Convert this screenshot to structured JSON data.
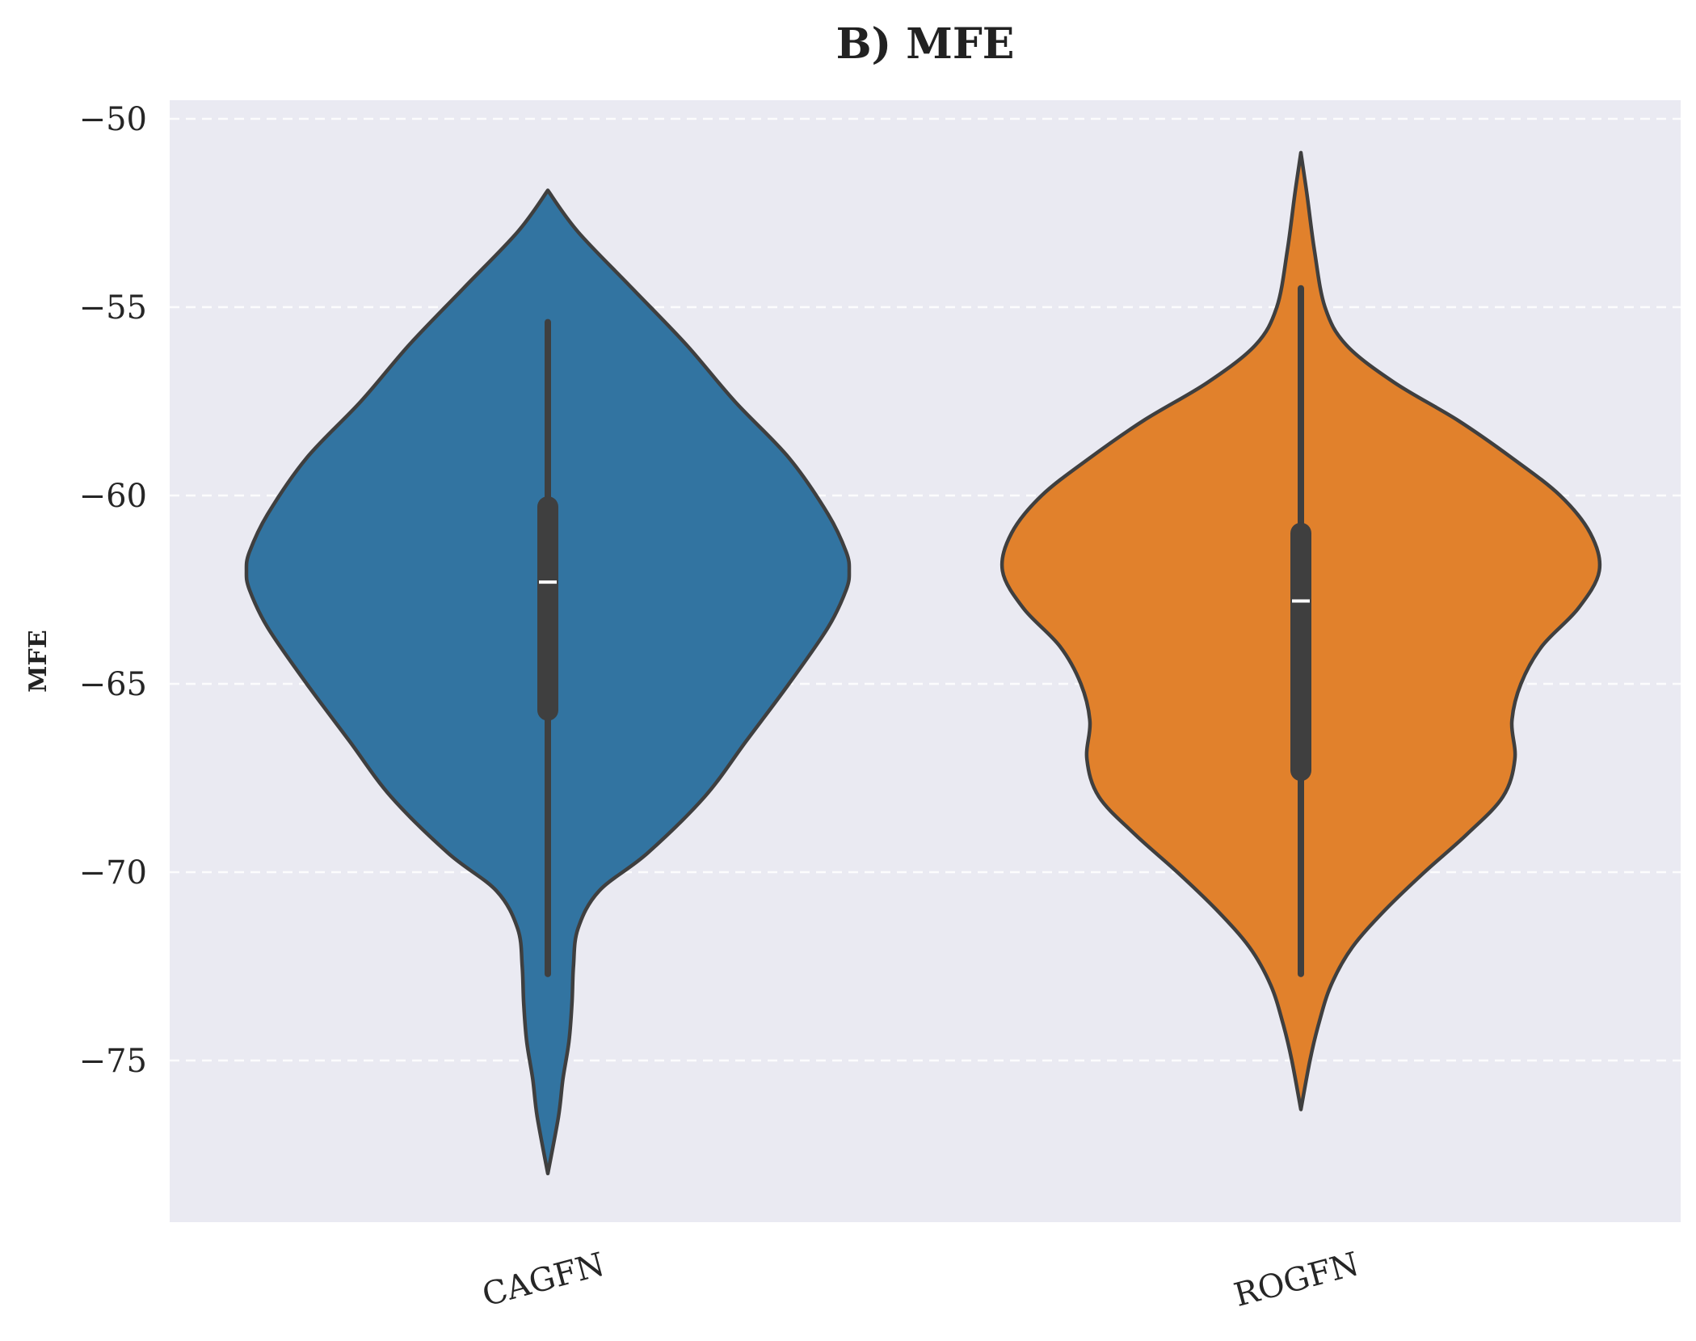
{
  "chart_data": {
    "type": "violin",
    "title": "B) MFE",
    "xlabel": "",
    "ylabel": "MFE",
    "ylim": [
      -79.5,
      -49.5
    ],
    "yticks": [
      -50,
      -55,
      -60,
      -65,
      -70,
      -75
    ],
    "ytick_labels": [
      "−50",
      "−55",
      "−60",
      "−65",
      "−70",
      "−75"
    ],
    "grid": true,
    "grid_style": "dashed",
    "categories": [
      "CAGFN",
      "ROGFN"
    ],
    "series": [
      {
        "category": "CAGFN",
        "color": "#3274a1",
        "range": [
          -78,
          -51.9
        ],
        "whisker": [
          -72.7,
          -55.4
        ],
        "q1": -65.7,
        "q3": -60.3,
        "median": -62.3,
        "density": [
          [
            -51.9,
            0.0
          ],
          [
            -53,
            0.1
          ],
          [
            -54.5,
            0.28
          ],
          [
            -56,
            0.46
          ],
          [
            -57.5,
            0.62
          ],
          [
            -59,
            0.8
          ],
          [
            -60.5,
            0.93
          ],
          [
            -61.5,
            0.99
          ],
          [
            -62,
            1.0
          ],
          [
            -62.5,
            0.99
          ],
          [
            -63.5,
            0.93
          ],
          [
            -65,
            0.8
          ],
          [
            -66.5,
            0.66
          ],
          [
            -68,
            0.52
          ],
          [
            -69.5,
            0.33
          ],
          [
            -70.5,
            0.17
          ],
          [
            -71.5,
            0.1
          ],
          [
            -72.5,
            0.085
          ],
          [
            -73.5,
            0.08
          ],
          [
            -74.5,
            0.07
          ],
          [
            -75.5,
            0.05
          ],
          [
            -76.5,
            0.035
          ],
          [
            -78,
            0.0
          ]
        ]
      },
      {
        "category": "ROGFN",
        "color": "#e1812c",
        "range": [
          -76.3,
          -50.9
        ],
        "whisker": [
          -72.7,
          -54.5
        ],
        "q1": -67.3,
        "q3": -61.0,
        "median": -62.8,
        "density": [
          [
            -50.9,
            0.0
          ],
          [
            -52,
            0.02
          ],
          [
            -53.5,
            0.045
          ],
          [
            -55,
            0.08
          ],
          [
            -56,
            0.15
          ],
          [
            -57,
            0.31
          ],
          [
            -58,
            0.52
          ],
          [
            -59,
            0.7
          ],
          [
            -60,
            0.86
          ],
          [
            -61,
            0.96
          ],
          [
            -62,
            0.99
          ],
          [
            -63,
            0.92
          ],
          [
            -64,
            0.8
          ],
          [
            -65,
            0.73
          ],
          [
            -66,
            0.7
          ],
          [
            -67,
            0.71
          ],
          [
            -68,
            0.67
          ],
          [
            -69,
            0.55
          ],
          [
            -70,
            0.41
          ],
          [
            -71,
            0.28
          ],
          [
            -72,
            0.17
          ],
          [
            -73,
            0.1
          ],
          [
            -74,
            0.06
          ],
          [
            -75,
            0.03
          ],
          [
            -76.3,
            0.0
          ]
        ]
      }
    ]
  }
}
